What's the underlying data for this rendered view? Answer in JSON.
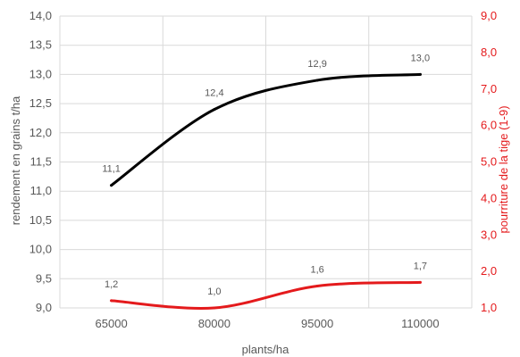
{
  "chart_data": {
    "type": "line",
    "title": "",
    "xlabel": "plants/ha",
    "ylabel_left": "rendement en grains t/ha",
    "ylabel_right": "pourriture de la tige (1-9)",
    "categories": [
      "65000",
      "80000",
      "95000",
      "110000"
    ],
    "y_left": {
      "range": [
        9.0,
        14.0
      ],
      "ticks": [
        "9,0",
        "9,5",
        "10,0",
        "10,5",
        "11,0",
        "11,5",
        "12,0",
        "12,5",
        "13,0",
        "13,5",
        "14,0"
      ]
    },
    "y_right": {
      "range": [
        1.0,
        9.0
      ],
      "ticks": [
        "1,0",
        "2,0",
        "3,0",
        "4,0",
        "5,0",
        "6,0",
        "7,0",
        "8,0",
        "9,0"
      ]
    },
    "series": [
      {
        "axis": "left",
        "color": "#000000",
        "values": [
          11.1,
          12.4,
          12.9,
          13.0
        ],
        "labels": [
          "11,1",
          "12,4",
          "12,9",
          "13,0"
        ]
      },
      {
        "axis": "right",
        "color": "#e41a1c",
        "values": [
          1.2,
          1.0,
          1.6,
          1.7
        ],
        "labels": [
          "1,2",
          "1,0",
          "1,6",
          "1,7"
        ]
      }
    ],
    "grid": true,
    "legend": "none"
  }
}
